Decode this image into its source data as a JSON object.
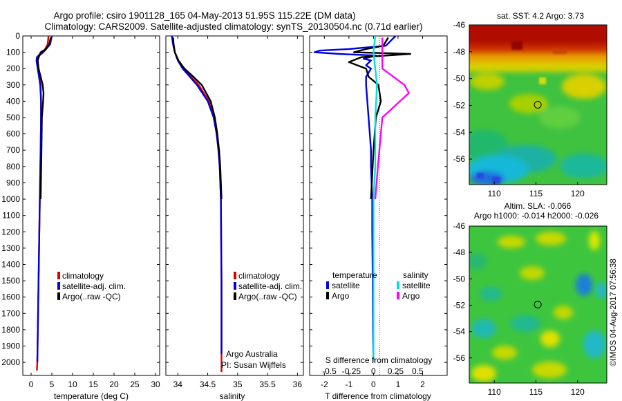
{
  "header": {
    "line1": "Argo profile: csiro 1901128_165 04-May-2013 51.95S 115.22E (DM data)",
    "line2": "Climatology: CARS2009. Satellite-adjusted climatology: synTS_20130504.nc (0.71d earlier)"
  },
  "colors": {
    "climatology": "#e00000",
    "satellite": "#0000e0",
    "argo": "#000000",
    "sal_satellite": "#00e0e0",
    "sal_argo": "#ff00ff"
  },
  "chart_data": [
    {
      "type": "line",
      "id": "temperature",
      "xlabel": "temperature (deg C)",
      "xlim": [
        -2,
        31
      ],
      "ylim": [
        2080,
        0
      ],
      "y_reversed": true,
      "xticks": [
        0,
        5,
        10,
        15,
        20,
        25,
        30
      ],
      "yticks": [
        0,
        100,
        200,
        300,
        400,
        500,
        600,
        700,
        800,
        900,
        1000,
        1100,
        1200,
        1300,
        1400,
        1500,
        1600,
        1700,
        1800,
        1900,
        2000
      ],
      "legend": [
        "climatology",
        "satellite-adj. clim.",
        "Argo(..raw -QC)"
      ],
      "legend_position": "lower-middle",
      "series": [
        {
          "name": "climatology",
          "color": "#e00000",
          "depth": [
            0,
            50,
            100,
            120,
            150,
            200,
            250,
            300,
            400,
            500,
            700,
            1000,
            1500,
            2000,
            2050
          ],
          "values": [
            4.2,
            4.0,
            3.0,
            2.0,
            1.6,
            1.6,
            2.0,
            2.3,
            2.4,
            2.4,
            2.3,
            2.1,
            1.8,
            1.5,
            1.4
          ]
        },
        {
          "name": "satellite-adj. clim.",
          "color": "#0000e0",
          "depth": [
            0,
            50,
            90,
            110,
            130,
            150,
            200,
            250,
            300,
            400,
            500,
            700,
            1000,
            1500,
            2000
          ],
          "values": [
            5.0,
            4.6,
            3.3,
            2.2,
            1.4,
            1.3,
            1.6,
            1.9,
            2.2,
            2.4,
            2.4,
            2.3,
            2.1,
            1.8,
            1.5
          ]
        },
        {
          "name": "Argo(..raw -QC)",
          "color": "#000000",
          "depth": [
            10,
            50,
            80,
            100,
            130,
            150,
            200,
            250,
            300,
            350,
            400,
            500,
            700,
            1000
          ],
          "values": [
            4.7,
            4.4,
            3.6,
            2.3,
            1.8,
            1.6,
            1.8,
            2.3,
            2.8,
            3.0,
            2.9,
            2.6,
            2.5,
            2.3
          ]
        }
      ]
    },
    {
      "type": "line",
      "id": "salinity",
      "xlabel": "salinity",
      "xlim": [
        33.8,
        36.1
      ],
      "ylim": [
        2080,
        0
      ],
      "y_reversed": true,
      "xticks": [
        34,
        34.5,
        35,
        35.5,
        36
      ],
      "legend": [
        "climatology",
        "satellite-adj. clim.",
        "Argo(..raw -QC)"
      ],
      "legend_position": "lower-middle",
      "annotations": [
        "Argo Australia",
        "PI: Susan Wijffels"
      ],
      "series": [
        {
          "name": "climatology",
          "color": "#e00000",
          "depth": [
            0,
            50,
            100,
            150,
            200,
            250,
            300,
            400,
            500,
            600,
            700,
            800,
            1000,
            1500,
            2000,
            2060
          ],
          "values": [
            33.9,
            33.92,
            33.95,
            34.0,
            34.1,
            34.22,
            34.35,
            34.52,
            34.6,
            34.65,
            34.68,
            34.7,
            34.72,
            34.73,
            34.73,
            34.73
          ]
        },
        {
          "name": "satellite-adj. clim.",
          "color": "#0000e0",
          "depth": [
            0,
            50,
            100,
            150,
            200,
            250,
            300,
            400,
            500,
            600,
            700,
            800,
            1000,
            1500,
            1950
          ],
          "values": [
            33.9,
            33.92,
            33.95,
            34.0,
            34.08,
            34.2,
            34.32,
            34.5,
            34.6,
            34.65,
            34.68,
            34.7,
            34.72,
            34.73,
            34.73
          ]
        },
        {
          "name": "Argo(..raw -QC)",
          "color": "#000000",
          "depth": [
            10,
            50,
            100,
            150,
            200,
            250,
            300,
            400,
            500,
            600,
            700,
            800,
            1000
          ],
          "values": [
            33.92,
            33.93,
            33.95,
            34.01,
            34.11,
            34.26,
            34.4,
            34.55,
            34.62,
            34.66,
            34.69,
            34.71,
            34.73
          ]
        }
      ]
    },
    {
      "type": "line",
      "id": "differences",
      "xlabel": "T difference from climatology",
      "xlabel_top": "S difference from climatology",
      "xlim": [
        -2.6,
        3.0
      ],
      "ylim": [
        2080,
        0
      ],
      "y_reversed": true,
      "xticks": [
        -2,
        -1,
        0,
        1,
        2
      ],
      "xticks_top_labels": [
        "-0.5",
        "-0.25",
        "0",
        "0.25",
        "0.5"
      ],
      "legend_groups": [
        "temperature",
        "salinity"
      ],
      "legend": [
        "satellite",
        "Argo",
        "satellite",
        "Argo"
      ],
      "series": [
        {
          "name": "satellite",
          "group": "temperature",
          "color": "#0000e0",
          "depth": [
            0,
            60,
            80,
            90,
            100,
            110,
            120,
            140,
            150,
            180,
            200,
            250,
            300,
            400,
            500,
            600,
            700,
            800,
            1000,
            1200,
            1500,
            1800,
            2000
          ],
          "values": [
            0.9,
            0.5,
            -1.0,
            -2.2,
            -2.4,
            -1.4,
            0.1,
            -0.4,
            -0.1,
            -0.3,
            -0.1,
            -0.3,
            -0.3,
            -0.25,
            -0.2,
            -0.15,
            -0.1,
            -0.1,
            -0.05,
            -0.05,
            -0.03,
            -0.02,
            0
          ]
        },
        {
          "name": "Argo",
          "group": "temperature",
          "color": "#000000",
          "depth": [
            10,
            60,
            80,
            100,
            110,
            130,
            160,
            200,
            250,
            300,
            400,
            500,
            700,
            1000
          ],
          "values": [
            0.6,
            0.4,
            -0.3,
            -0.8,
            1.5,
            -0.5,
            -1.0,
            -0.3,
            -0.2,
            0.2,
            0.3,
            0.1,
            0.0,
            -0.1
          ]
        },
        {
          "name": "satellite",
          "group": "salinity",
          "color": "#00e0e0",
          "depth": [
            0,
            100,
            200,
            300,
            500,
            800,
            1000,
            1500,
            1900,
            2000
          ],
          "values": [
            0.02,
            0.0,
            0.02,
            0.04,
            0.02,
            0.02,
            0.0,
            0.0,
            0.0,
            0.0
          ]
        },
        {
          "name": "Argo",
          "group": "salinity",
          "color": "#ff00ff",
          "depth": [
            10,
            100,
            200,
            300,
            350,
            400,
            500,
            800,
            1000
          ],
          "values": [
            0.1,
            0.1,
            0.1,
            0.35,
            0.4,
            0.3,
            0.1,
            0.05,
            0.02
          ]
        }
      ]
    },
    {
      "type": "heatmap",
      "id": "sst_map",
      "title": "sat. SST: 4.2 Argo: 3.73",
      "xticks": [
        110,
        115,
        120
      ],
      "yticks": [
        -46,
        -48,
        -50,
        -52,
        -54,
        -56
      ],
      "xlim": [
        107,
        123.5
      ],
      "ylim": [
        -57.9,
        -46
      ],
      "marker": {
        "lon": 115.22,
        "lat": -51.95
      }
    },
    {
      "type": "heatmap",
      "id": "sla_map",
      "title": "Altim. SLA: -0.066",
      "subtitle": "Argo h1000: -0.014 h2000: -0.026",
      "xticks": [
        110,
        115,
        120
      ],
      "yticks": [
        -46,
        -48,
        -50,
        -52,
        -54,
        -56
      ],
      "xlim": [
        107,
        123.5
      ],
      "ylim": [
        -57.9,
        -46
      ],
      "marker": {
        "lon": 115.22,
        "lat": -51.95
      }
    }
  ],
  "footer": {
    "credit": "©IMOS 04-Aug-2017 07:56:38"
  }
}
